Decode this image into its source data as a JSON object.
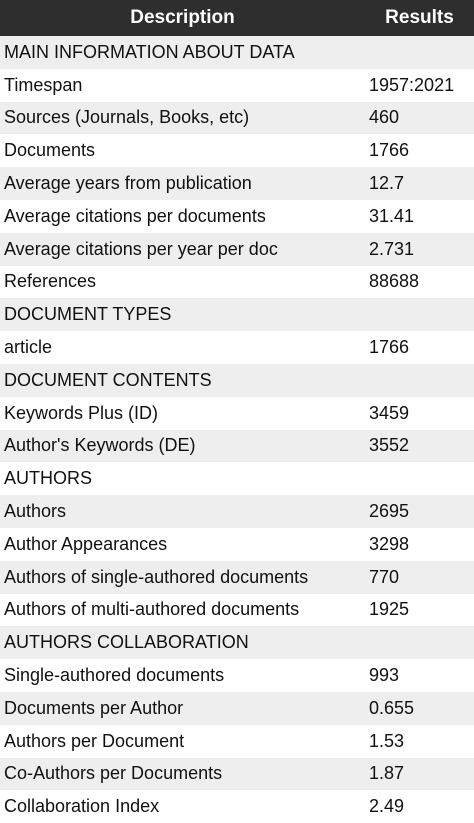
{
  "table": {
    "header": [
      "Description",
      "Results"
    ],
    "rows": [
      [
        "MAIN INFORMATION ABOUT DATA"
      ],
      [
        "Timespan",
        "1957:2021"
      ],
      [
        "Sources (Journals, Books, etc)",
        "460"
      ],
      [
        "Documents",
        "1766"
      ],
      [
        "Average years from publication",
        "12.7"
      ],
      [
        "Average citations per documents",
        "31.41"
      ],
      [
        "Average citations per year per doc",
        "2.731"
      ],
      [
        "References",
        "88688"
      ],
      [
        "DOCUMENT TYPES"
      ],
      [
        "article",
        "1766"
      ],
      [
        "DOCUMENT CONTENTS"
      ],
      [
        "Keywords Plus (ID)",
        "3459"
      ],
      [
        "Author's Keywords (DE)",
        "3552"
      ],
      [
        "AUTHORS"
      ],
      [
        "Authors",
        "2695"
      ],
      [
        "Author Appearances",
        "3298"
      ],
      [
        "Authors of single-authored documents",
        "770"
      ],
      [
        "Authors of multi-authored documents",
        "1925"
      ],
      [
        "AUTHORS COLLABORATION"
      ],
      [
        "Single-authored documents",
        "993"
      ],
      [
        "Documents per Author",
        "0.655"
      ],
      [
        "Authors per Document",
        "1.53"
      ],
      [
        "Co-Authors per Documents",
        "1.87"
      ],
      [
        "Collaboration Index",
        "2.49"
      ]
    ]
  }
}
